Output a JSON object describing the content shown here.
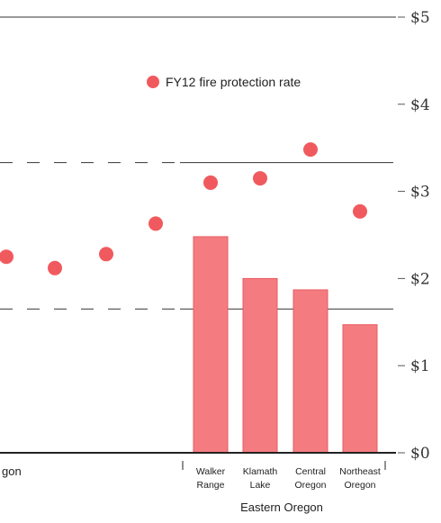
{
  "chart_data": {
    "type": "bar",
    "title": "",
    "xlabel": "",
    "ylabel": "",
    "ylim": [
      0,
      5
    ],
    "y_ticks": [
      "$0",
      "$1",
      "$2",
      "$3",
      "$4",
      "$5"
    ],
    "reference_lines": [
      3.33,
      1.65
    ],
    "categories": [
      "",
      "",
      "",
      "",
      "Walker Range",
      "Klamath Lake",
      "Central Oregon",
      "Northeast Oregon"
    ],
    "category_lines": [
      [],
      [],
      [],
      [],
      [
        "Walker",
        "Range"
      ],
      [
        "Klamath",
        "Lake"
      ],
      [
        "Central",
        "Oregon"
      ],
      [
        "Northeast",
        "Oregon"
      ]
    ],
    "series": [
      {
        "name": "",
        "type": "bar",
        "color": "#f47c80",
        "values": [
          null,
          null,
          null,
          null,
          2.48,
          2.0,
          1.87,
          1.47
        ]
      },
      {
        "name": "FY12 fire protection rate",
        "type": "scatter",
        "color": "#f05a5e",
        "values": [
          2.25,
          2.12,
          2.28,
          2.63,
          3.1,
          3.15,
          3.48,
          2.77
        ]
      }
    ],
    "groups": [
      {
        "label": "gon"
      },
      {
        "label": "Eastern Oregon"
      }
    ],
    "legend": "top-center",
    "grid": false
  }
}
